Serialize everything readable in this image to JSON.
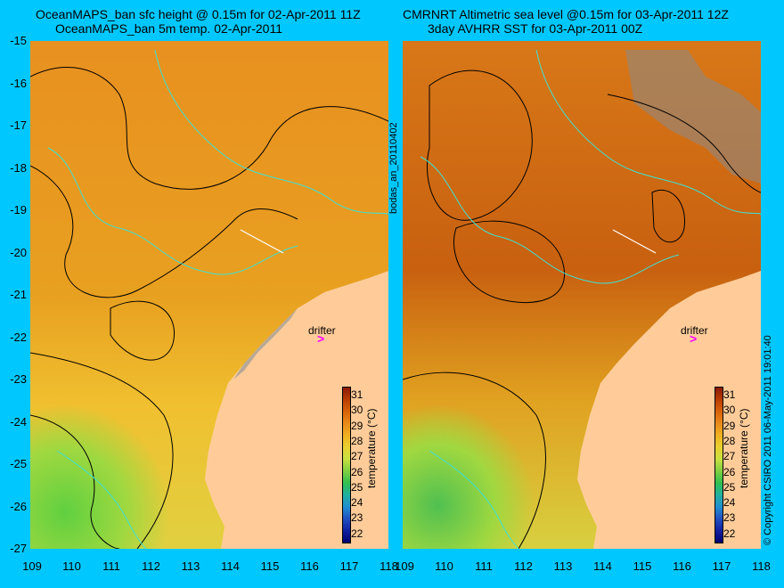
{
  "left": {
    "title1": "OceanMAPS_ban sfc height @ 0.15m for 02-Apr-2011 11Z",
    "title2": "OceanMAPS_ban 5m temp. 02-Apr-2011"
  },
  "right": {
    "title1": "CMRNRT Altimetric sea level  @0.15m  for 03-Apr-2011 12Z",
    "title2": "3day AVHRR SST for 03-Apr-2011 00Z"
  },
  "side_label": "bodas_an_20110402",
  "copyright": "© Copyright CSIRO 2011   06-May-2011 19:01:40",
  "drifter_label": "drifter",
  "y_ticks": [
    "-15",
    "-16",
    "-17",
    "-18",
    "-19",
    "-20",
    "-21",
    "-22",
    "-23",
    "-24",
    "-25",
    "-26",
    "-27"
  ],
  "x_ticks": [
    "109",
    "110",
    "111",
    "112",
    "113",
    "114",
    "115",
    "116",
    "117",
    "118"
  ],
  "colorbar": {
    "title": "temperature (°C)",
    "ticks": [
      "31",
      "30",
      "29",
      "28",
      "27",
      "26",
      "25",
      "24",
      "23",
      "22"
    ],
    "colors": [
      "#8b1a00",
      "#b83c00",
      "#d8620a",
      "#e88a1a",
      "#f0b020",
      "#e8d030",
      "#c8e040",
      "#80d040",
      "#30c050",
      "#20b0a0",
      "#2090d0",
      "#2050c0",
      "#1020a0",
      "#000070"
    ]
  },
  "colors": {
    "background": "#00c8ff",
    "land": "#ffcc99",
    "contour": "#000000",
    "bathymetry": "#40e0d0",
    "drifter": "#ff00ff"
  }
}
